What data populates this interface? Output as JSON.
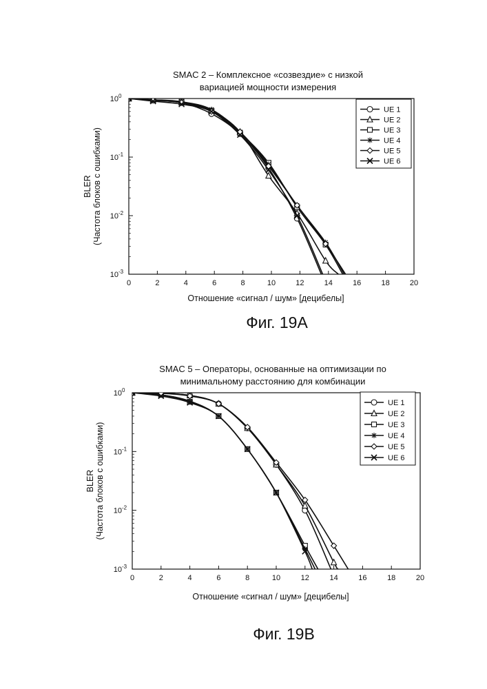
{
  "chart_data": [
    {
      "type": "line",
      "title_lines": [
        "SMAC 2 – Комплексное «созвездие» с низкой",
        "вариацией мощности измерения"
      ],
      "xlabel": "Отношение «сигнал / шум» [децибелы]",
      "ylabel_lines": [
        "BLER",
        "(Частота блоков с ошибками)"
      ],
      "xlim": [
        0,
        20
      ],
      "ylim": [
        0.001,
        1
      ],
      "yscale": "log",
      "x_ticks": [
        "0",
        "2",
        "4",
        "6",
        "8",
        "10",
        "12",
        "14",
        "16",
        "18",
        "20"
      ],
      "y_ticks": [
        {
          "base": "10",
          "exp": "0"
        },
        {
          "base": "10",
          "exp": "-1"
        },
        {
          "base": "10",
          "exp": "-2"
        },
        {
          "base": "10",
          "exp": "-3"
        }
      ],
      "grid": false,
      "legend_position": "top-right",
      "caption": "Фиг. 19A",
      "series": [
        {
          "name": "UE 1",
          "marker": "circle",
          "x": [
            0,
            1.7,
            3.7,
            5.8,
            7.8,
            9.8,
            11.8,
            13.5
          ],
          "y": [
            1.0,
            0.95,
            0.85,
            0.55,
            0.25,
            0.065,
            0.009,
            0.001
          ]
        },
        {
          "name": "UE 2",
          "marker": "triangle",
          "x": [
            0,
            1.7,
            3.7,
            5.8,
            7.8,
            9.8,
            11.8,
            13.8,
            14.7
          ],
          "y": [
            1.0,
            0.94,
            0.85,
            0.62,
            0.27,
            0.048,
            0.011,
            0.0017,
            0.001
          ]
        },
        {
          "name": "UE 3",
          "marker": "square",
          "x": [
            0,
            1.7,
            3.7,
            5.8,
            7.8,
            9.8,
            11.8,
            13.8,
            15.0
          ],
          "y": [
            1.0,
            0.95,
            0.88,
            0.62,
            0.26,
            0.08,
            0.014,
            0.0032,
            0.001
          ]
        },
        {
          "name": "UE 4",
          "marker": "asterisk",
          "x": [
            0,
            1.7,
            3.7,
            5.8,
            7.8,
            9.8,
            11.8,
            13.8,
            15.1
          ],
          "y": [
            1.0,
            0.93,
            0.88,
            0.65,
            0.27,
            0.075,
            0.015,
            0.0035,
            0.001
          ]
        },
        {
          "name": "UE 5",
          "marker": "diamond",
          "x": [
            0,
            1.7,
            3.7,
            5.8,
            7.8,
            9.8,
            11.8,
            13.8,
            15.2
          ],
          "y": [
            1.0,
            0.93,
            0.85,
            0.6,
            0.27,
            0.07,
            0.015,
            0.0033,
            0.001
          ]
        },
        {
          "name": "UE 6",
          "marker": "x",
          "x": [
            0,
            1.7,
            3.7,
            5.8,
            7.8,
            9.8,
            11.8,
            13.6
          ],
          "y": [
            1.0,
            0.9,
            0.8,
            0.6,
            0.24,
            0.06,
            0.01,
            0.001
          ]
        }
      ]
    },
    {
      "type": "line",
      "title_lines": [
        "SMAC 5 – Операторы, основанные на оптимизации по",
        "минимальному расстоянию для комбинации"
      ],
      "xlabel": "Отношение «сигнал / шум» [децибелы]",
      "ylabel_lines": [
        "BLER",
        "(Частота блоков с ошибками)"
      ],
      "xlim": [
        0,
        20
      ],
      "ylim": [
        0.001,
        1
      ],
      "yscale": "log",
      "x_ticks": [
        "0",
        "2",
        "4",
        "6",
        "8",
        "10",
        "12",
        "14",
        "16",
        "18",
        "20"
      ],
      "y_ticks": [
        {
          "base": "10",
          "exp": "0"
        },
        {
          "base": "10",
          "exp": "-1"
        },
        {
          "base": "10",
          "exp": "-2"
        },
        {
          "base": "10",
          "exp": "-3"
        }
      ],
      "grid": false,
      "legend_position": "top-right",
      "caption": "Фиг. 19B",
      "series": [
        {
          "name": "UE 1",
          "marker": "circle",
          "x": [
            0,
            2,
            4,
            6,
            8,
            10,
            12,
            13.8
          ],
          "y": [
            1.0,
            0.98,
            0.9,
            0.65,
            0.25,
            0.06,
            0.01,
            0.001
          ]
        },
        {
          "name": "UE 2",
          "marker": "triangle",
          "x": [
            0,
            2,
            4,
            6,
            8,
            10,
            12,
            14,
            14.3
          ],
          "y": [
            1.0,
            0.98,
            0.9,
            0.65,
            0.25,
            0.06,
            0.012,
            0.0013,
            0.001
          ]
        },
        {
          "name": "UE 3",
          "marker": "square",
          "x": [
            0,
            2,
            4,
            6,
            8,
            10,
            12,
            12.9
          ],
          "y": [
            1.0,
            0.92,
            0.7,
            0.4,
            0.11,
            0.02,
            0.0025,
            0.001
          ]
        },
        {
          "name": "UE 4",
          "marker": "asterisk",
          "x": [
            0,
            2,
            4,
            6,
            8,
            10,
            12,
            12.7
          ],
          "y": [
            1.0,
            0.92,
            0.72,
            0.4,
            0.11,
            0.02,
            0.0022,
            0.001
          ]
        },
        {
          "name": "UE 5",
          "marker": "diamond",
          "x": [
            0,
            2,
            4,
            6,
            8,
            10,
            12,
            14,
            15.0
          ],
          "y": [
            1.0,
            0.98,
            0.88,
            0.65,
            0.26,
            0.065,
            0.015,
            0.0025,
            0.001
          ]
        },
        {
          "name": "UE 6",
          "marker": "x",
          "x": [
            0,
            2,
            4,
            6,
            8,
            10,
            12,
            12.5
          ],
          "y": [
            1.0,
            0.88,
            0.68,
            0.4,
            0.11,
            0.02,
            0.002,
            0.001
          ]
        }
      ]
    }
  ]
}
